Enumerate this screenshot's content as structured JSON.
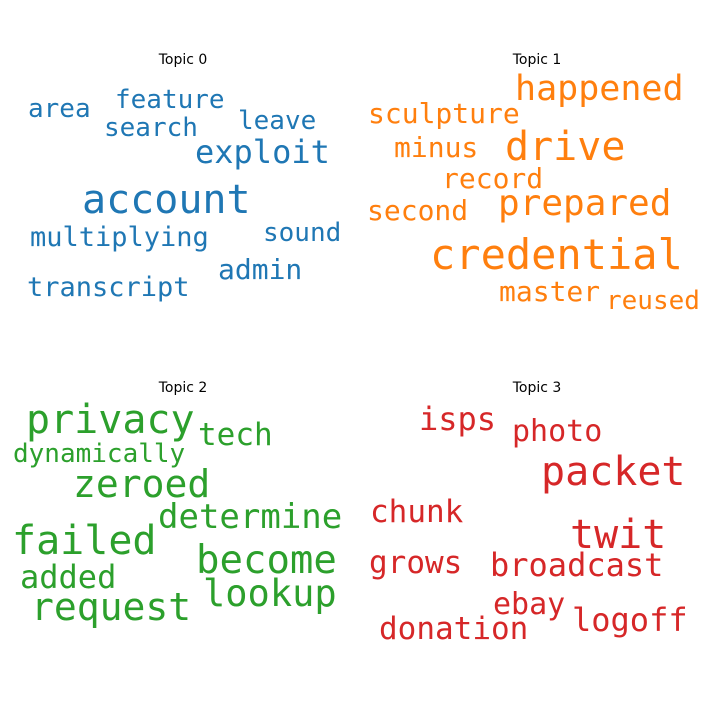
{
  "chart_data": [
    {
      "type": "wordcloud",
      "title": "Topic 0",
      "color": "#1f77b4",
      "words": [
        "account",
        "exploit",
        "multiplying",
        "admin",
        "transcript",
        "feature",
        "search",
        "area",
        "leave",
        "sound"
      ]
    },
    {
      "type": "wordcloud",
      "title": "Topic 1",
      "color": "#ff7f0e",
      "words": [
        "credential",
        "drive",
        "prepared",
        "happened",
        "sculpture",
        "minus",
        "record",
        "second",
        "master",
        "reused"
      ]
    },
    {
      "type": "wordcloud",
      "title": "Topic 2",
      "color": "#2ca02c",
      "words": [
        "privacy",
        "failed",
        "become",
        "request",
        "zeroed",
        "lookup",
        "determine",
        "tech",
        "added",
        "dynamically"
      ]
    },
    {
      "type": "wordcloud",
      "title": "Topic 3",
      "color": "#d62728",
      "words": [
        "packet",
        "twit",
        "broadcast",
        "logoff",
        "donation",
        "photo",
        "isps",
        "chunk",
        "grows",
        "ebay"
      ]
    }
  ]
}
